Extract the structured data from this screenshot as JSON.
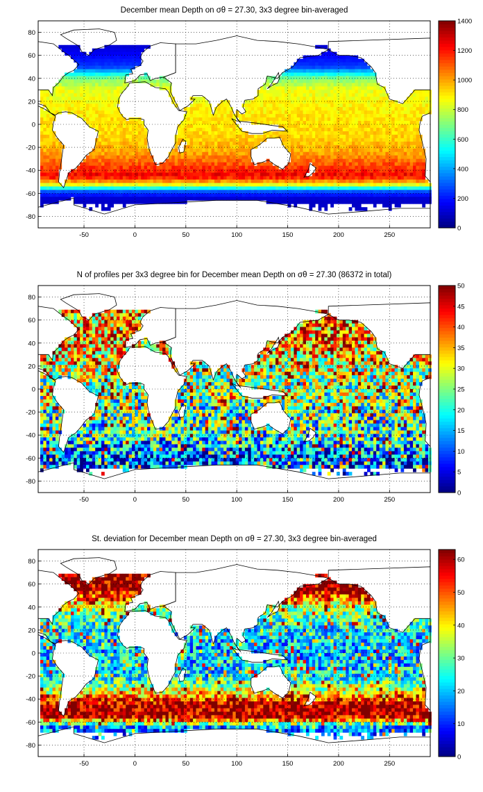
{
  "chart_data": [
    {
      "type": "heatmap",
      "title": "December mean Depth on σθ = 27.30, 3x3 degree bin-averaged",
      "x_ticks": [
        -50,
        0,
        50,
        100,
        150,
        200,
        250
      ],
      "y_ticks": [
        80,
        60,
        40,
        20,
        0,
        -20,
        -40,
        -60,
        -80
      ],
      "xlim": [
        -95,
        290
      ],
      "ylim": [
        -90,
        90
      ],
      "colorbar": {
        "min": 0,
        "max": 1400,
        "ticks": [
          1400,
          1200,
          1000,
          800,
          600,
          400,
          200,
          0
        ]
      },
      "grid": true,
      "summary_by_latitude": [
        {
          "lat": 70,
          "value": 100
        },
        {
          "lat": 50,
          "value": 250
        },
        {
          "lat": 40,
          "value": 700
        },
        {
          "lat": 30,
          "value": 850
        },
        {
          "lat": 10,
          "value": 900
        },
        {
          "lat": -10,
          "value": 930
        },
        {
          "lat": -25,
          "value": 1000
        },
        {
          "lat": -38,
          "value": 1150
        },
        {
          "lat": -45,
          "value": 1250
        },
        {
          "lat": -52,
          "value": 900
        },
        {
          "lat": -58,
          "value": 300
        },
        {
          "lat": -65,
          "value": 100
        }
      ]
    },
    {
      "type": "heatmap",
      "title": "N of profiles per 3x3 degree bin for December mean Depth on σθ = 27.30 (86372 in total)",
      "x_ticks": [
        -50,
        0,
        50,
        100,
        150,
        200,
        250
      ],
      "y_ticks": [
        80,
        60,
        40,
        20,
        0,
        -20,
        -40,
        -60,
        -80
      ],
      "xlim": [
        -95,
        290
      ],
      "ylim": [
        -90,
        90
      ],
      "colorbar": {
        "min": 0,
        "max": 50,
        "ticks": [
          50,
          45,
          40,
          35,
          30,
          25,
          20,
          15,
          10,
          5,
          0
        ]
      },
      "grid": true,
      "total_profiles": 86372,
      "summary_by_latitude": [
        {
          "lat": 40,
          "value": 35
        },
        {
          "lat": 20,
          "value": 28
        },
        {
          "lat": 0,
          "value": 25
        },
        {
          "lat": -20,
          "value": 22
        },
        {
          "lat": -40,
          "value": 20
        },
        {
          "lat": -60,
          "value": 10
        }
      ]
    },
    {
      "type": "heatmap",
      "title": "St. deviation for December mean Depth on σθ = 27.30, 3x3 degree bin-averaged",
      "x_ticks": [
        -50,
        0,
        50,
        100,
        150,
        200,
        250
      ],
      "y_ticks": [
        80,
        60,
        40,
        20,
        0,
        -20,
        -40,
        -60,
        -80
      ],
      "xlim": [
        -95,
        290
      ],
      "ylim": [
        -90,
        90
      ],
      "colorbar": {
        "min": 0,
        "max": 63,
        "ticks": [
          60,
          50,
          40,
          30,
          20,
          10,
          0
        ]
      },
      "grid": true,
      "summary_by_latitude": [
        {
          "lat": 55,
          "value": 60
        },
        {
          "lat": 40,
          "value": 35
        },
        {
          "lat": 20,
          "value": 22
        },
        {
          "lat": 0,
          "value": 20
        },
        {
          "lat": -20,
          "value": 22
        },
        {
          "lat": -35,
          "value": 40
        },
        {
          "lat": -45,
          "value": 60
        },
        {
          "lat": -55,
          "value": 60
        },
        {
          "lat": -65,
          "value": 15
        }
      ]
    }
  ]
}
